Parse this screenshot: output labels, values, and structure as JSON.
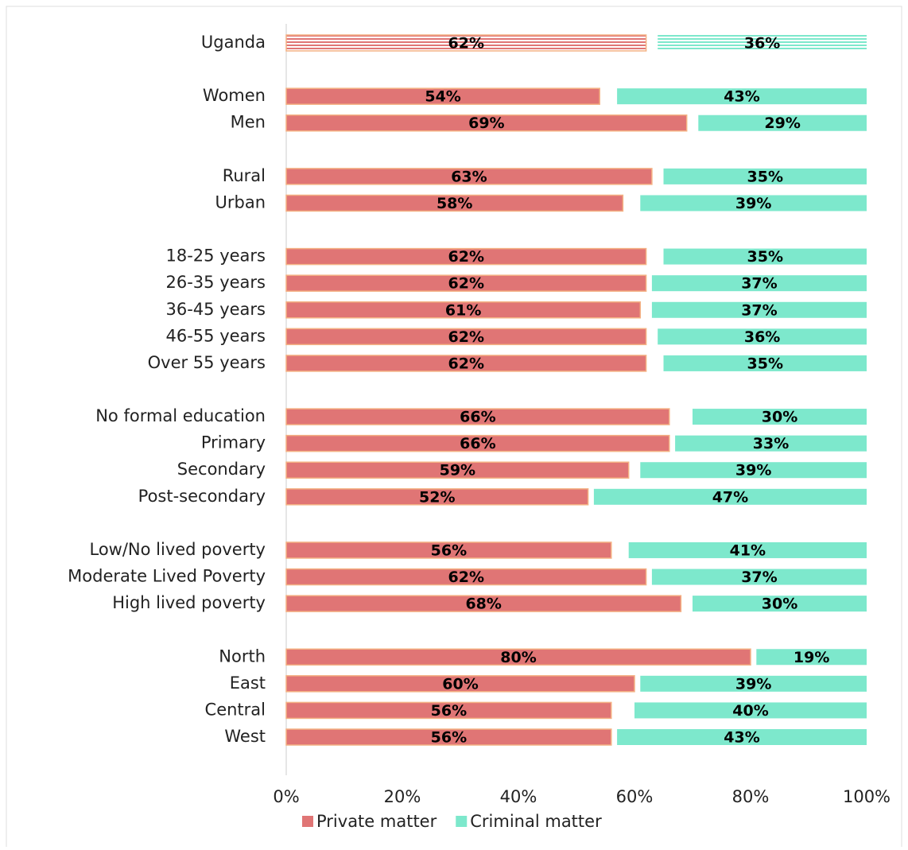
{
  "chart_data": {
    "type": "bar",
    "orientation": "horizontal",
    "categories": [
      "Uganda",
      null,
      "Women",
      "Men",
      null,
      "Rural",
      "Urban",
      null,
      "18-25 years",
      "26-35 years",
      "36-45 years",
      "46-55 years",
      "Over 55 years",
      null,
      "No formal education",
      "Primary",
      "Secondary",
      "Post-secondary",
      null,
      "Low/No lived poverty",
      "Moderate Lived Poverty",
      "High lived poverty",
      null,
      "North",
      "East",
      "Central",
      "West"
    ],
    "series": [
      {
        "name": "Private matter",
        "color": "#e07575",
        "anchor": "start",
        "values": [
          62,
          null,
          54,
          69,
          null,
          63,
          58,
          null,
          62,
          62,
          61,
          62,
          62,
          null,
          66,
          66,
          59,
          52,
          null,
          56,
          62,
          68,
          null,
          80,
          60,
          56,
          56
        ],
        "value_labels": [
          "62%",
          null,
          "54%",
          "69%",
          null,
          "63%",
          "58%",
          null,
          "62%",
          "62%",
          "61%",
          "62%",
          "62%",
          null,
          "66%",
          "66%",
          "59%",
          "52%",
          null,
          "56%",
          "62%",
          "68%",
          null,
          "80%",
          "60%",
          "56%",
          "56%"
        ]
      },
      {
        "name": "Criminal matter",
        "color": "#7de8cc",
        "anchor": "end",
        "values": [
          36,
          null,
          43,
          29,
          null,
          35,
          39,
          null,
          35,
          37,
          37,
          36,
          35,
          null,
          30,
          33,
          39,
          47,
          null,
          41,
          37,
          30,
          null,
          19,
          39,
          40,
          43
        ],
        "value_labels": [
          "36%",
          null,
          "43%",
          "29%",
          null,
          "35%",
          "39%",
          null,
          "35%",
          "37%",
          "37%",
          "36%",
          "35%",
          null,
          "30%",
          "33%",
          "39%",
          "47%",
          null,
          "41%",
          "37%",
          "30%",
          null,
          "19%",
          "39%",
          "40%",
          "43%"
        ]
      }
    ],
    "xlim": [
      0,
      100
    ],
    "xticks": [
      {
        "value": 0,
        "label": "0%"
      },
      {
        "value": 20,
        "label": "20%"
      },
      {
        "value": 40,
        "label": "40%"
      },
      {
        "value": 60,
        "label": "60%"
      },
      {
        "value": 80,
        "label": "80%"
      },
      {
        "value": 100,
        "label": "100%"
      }
    ],
    "legend": "bottom"
  }
}
